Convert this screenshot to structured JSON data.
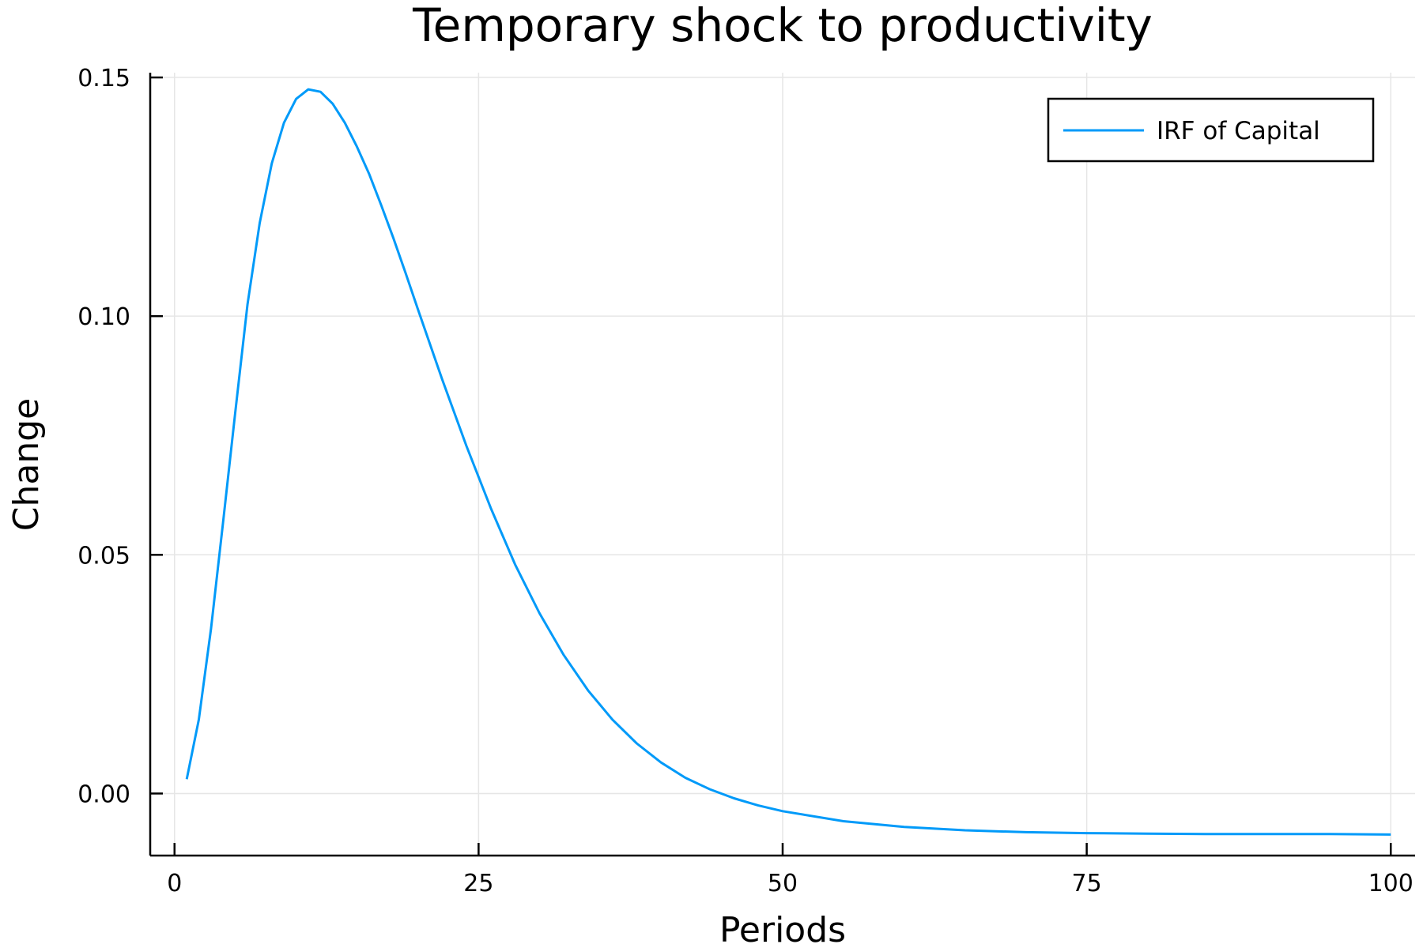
{
  "chart_data": {
    "type": "line",
    "title": "Temporary shock to productivity",
    "xlabel": "Periods",
    "ylabel": "Change",
    "xlim": [
      -2,
      102
    ],
    "ylim": [
      -0.013,
      0.151
    ],
    "xticks": [
      0,
      25,
      50,
      75,
      100
    ],
    "xtick_labels": [
      "0",
      "25",
      "50",
      "75",
      "100"
    ],
    "yticks": [
      0.0,
      0.05,
      0.1,
      0.15
    ],
    "ytick_labels": [
      "0.00",
      "0.05",
      "0.10",
      "0.15"
    ],
    "grid": true,
    "legend_position": "top-right",
    "series": [
      {
        "name": "IRF of Capital",
        "color": "#009af9",
        "x": [
          1,
          2,
          3,
          4,
          5,
          6,
          7,
          8,
          9,
          10,
          11,
          12,
          13,
          14,
          15,
          16,
          17,
          18,
          19,
          20,
          22,
          24,
          26,
          28,
          30,
          32,
          34,
          36,
          38,
          40,
          42,
          44,
          46,
          48,
          50,
          55,
          60,
          65,
          70,
          75,
          80,
          85,
          90,
          95,
          100
        ],
        "y": [
          0.003,
          0.0155,
          0.0345,
          0.057,
          0.08,
          0.1025,
          0.1195,
          0.132,
          0.1405,
          0.1455,
          0.1475,
          0.147,
          0.1445,
          0.1405,
          0.1355,
          0.1298,
          0.1232,
          0.1163,
          0.109,
          0.1015,
          0.0868,
          0.0728,
          0.0598,
          0.048,
          0.0378,
          0.029,
          0.0216,
          0.0155,
          0.0105,
          0.0065,
          0.0033,
          0.0009,
          -0.001,
          -0.0025,
          -0.0037,
          -0.0058,
          -0.007,
          -0.0077,
          -0.0081,
          -0.0083,
          -0.0084,
          -0.0085,
          -0.0085,
          -0.0085,
          -0.0086
        ]
      }
    ]
  }
}
